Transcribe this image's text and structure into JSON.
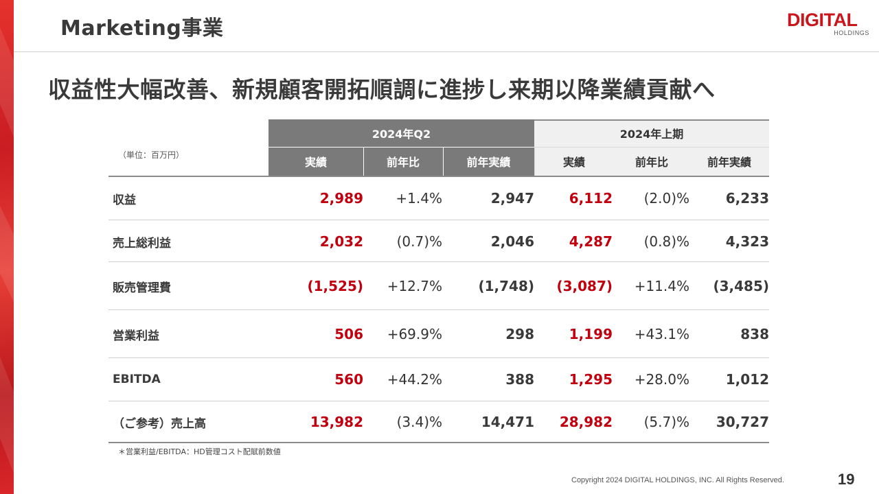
{
  "header": {
    "title": "Marketing事業",
    "logo_main": "DIGITAL",
    "logo_sub": "HOLDINGS"
  },
  "headline": "収益性大幅改善、新規顧客開拓順調に進捗し来期以降業績貢献へ",
  "table": {
    "unit": "（単位：百万円）",
    "groups": [
      "2024年Q2",
      "2024年上期"
    ],
    "sub_headers": [
      "実績",
      "前年比",
      "前年実績",
      "実績",
      "前年比",
      "前年実績"
    ],
    "rows": [
      {
        "label": "収益",
        "values": [
          "2,989",
          "+1.4%",
          "2,947",
          "6,112",
          "(2.0)%",
          "6,233"
        ]
      },
      {
        "label": "売上総利益",
        "values": [
          "2,032",
          "(0.7)%",
          "2,046",
          "4,287",
          "(0.8)%",
          "4,323"
        ]
      },
      {
        "label": "販売管理費",
        "values": [
          "(1,525)",
          "+12.7%",
          "(1,748)",
          "(3,087)",
          "+11.4%",
          "(3,485)"
        ]
      },
      {
        "label": "営業利益",
        "values": [
          "506",
          "+69.9%",
          "298",
          "1,199",
          "+43.1%",
          "838"
        ]
      },
      {
        "label": "EBITDA",
        "values": [
          "560",
          "+44.2%",
          "388",
          "1,295",
          "+28.0%",
          "1,012"
        ]
      },
      {
        "label": "（ご参考）売上高",
        "values": [
          "13,982",
          "(3.4)%",
          "14,471",
          "28,982",
          "(5.7)%",
          "30,727"
        ]
      }
    ]
  },
  "footnote": "＊営業利益/EBITDA：HD管理コスト配賦前数値",
  "copyright": "Copyright 2024 DIGITAL HOLDINGS, INC. All Rights Reserved.",
  "page_number": "19",
  "colors": {
    "accent_red": "#c0000f",
    "brand_red": "#c8161d",
    "header_dark": "#7a7a7a",
    "header_light": "#f0f0f0"
  }
}
